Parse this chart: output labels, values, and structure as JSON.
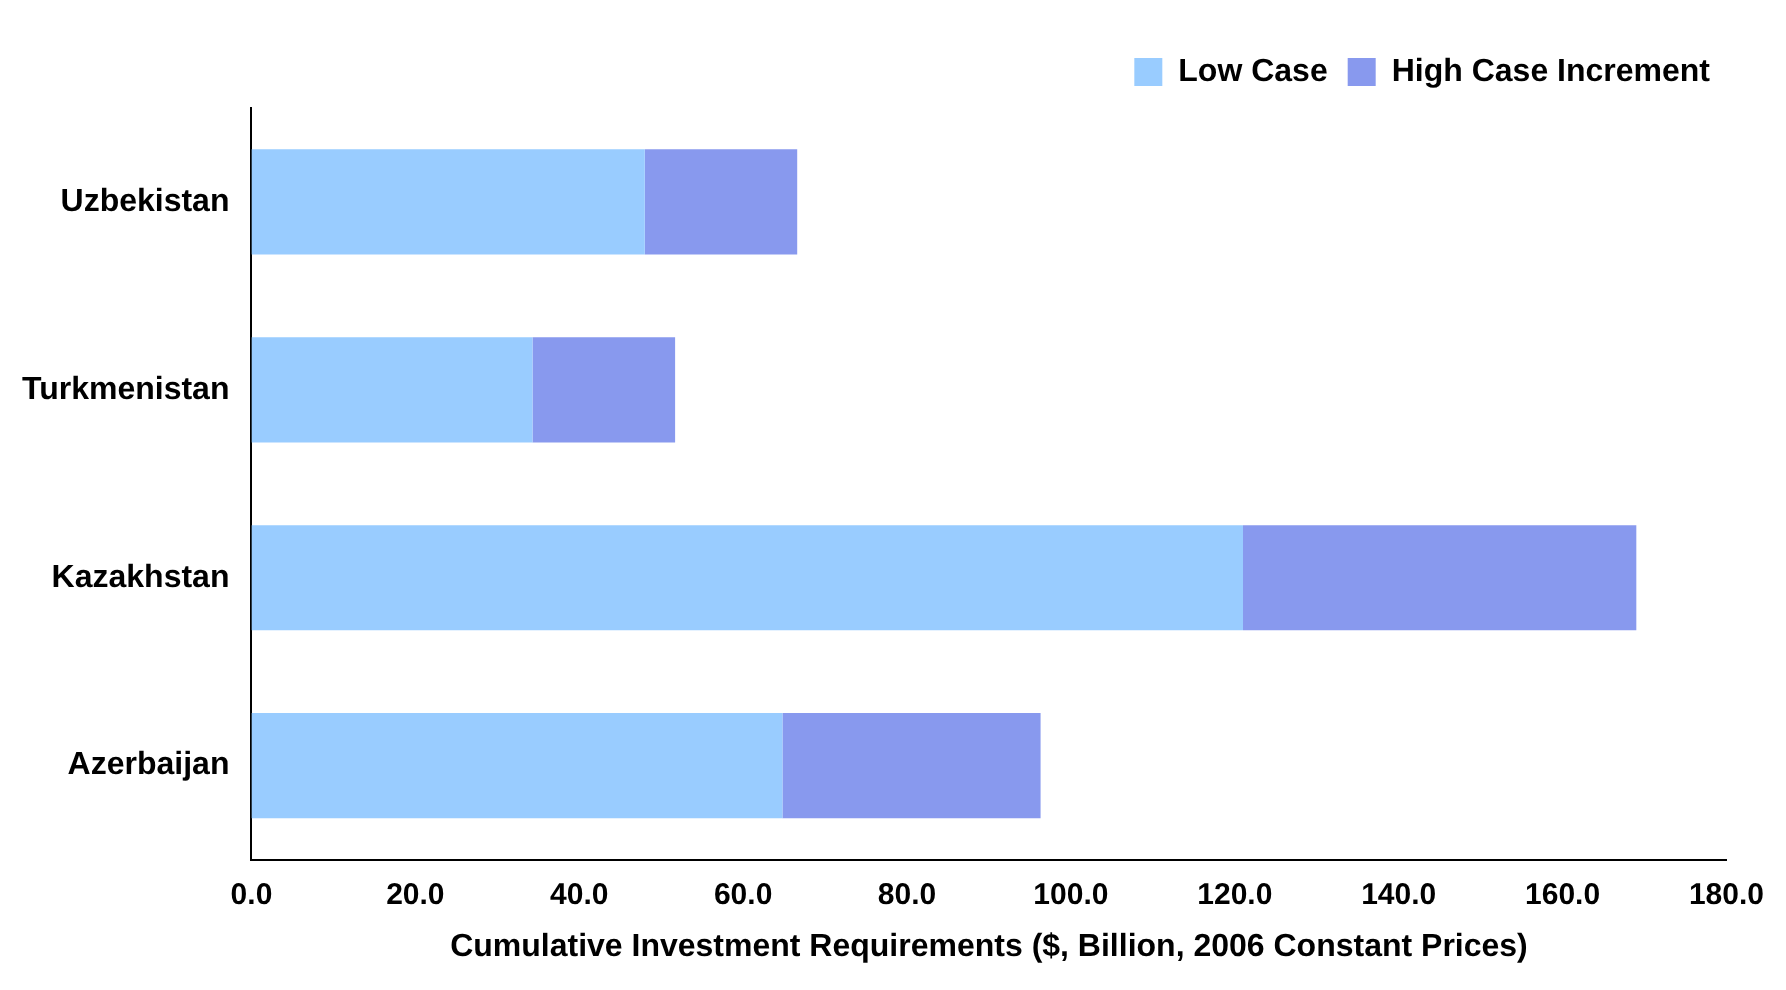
{
  "chart_data": {
    "type": "bar",
    "orientation": "horizontal",
    "stacked": true,
    "xlabel": "Cumulative Investment Requirements ($, Billion, 2006 Constant Prices)",
    "categories": [
      "Uzbekistan",
      "Turkmenistan",
      "Kazakhstan",
      "Azerbaijan"
    ],
    "series": [
      {
        "name": "Low Case",
        "color": "#99ccff",
        "values": [
          48,
          34.3,
          121,
          64.8
        ]
      },
      {
        "name": "High Case Increment",
        "color": "#8899ee",
        "values": [
          18.6,
          17.4,
          48,
          31.5
        ]
      }
    ],
    "xlim": [
      0,
      180
    ],
    "xticks": [
      {
        "value": 0,
        "label": "0.0"
      },
      {
        "value": 20,
        "label": "20.0"
      },
      {
        "value": 40,
        "label": "40.0"
      },
      {
        "value": 60,
        "label": "60.0"
      },
      {
        "value": 80,
        "label": "80.0"
      },
      {
        "value": 100,
        "label": "100.0"
      },
      {
        "value": 120,
        "label": "120.0"
      },
      {
        "value": 140,
        "label": "140.0"
      },
      {
        "value": 160,
        "label": "160.0"
      },
      {
        "value": 180,
        "label": "180.0"
      }
    ],
    "grid": false,
    "legend": "top right"
  }
}
